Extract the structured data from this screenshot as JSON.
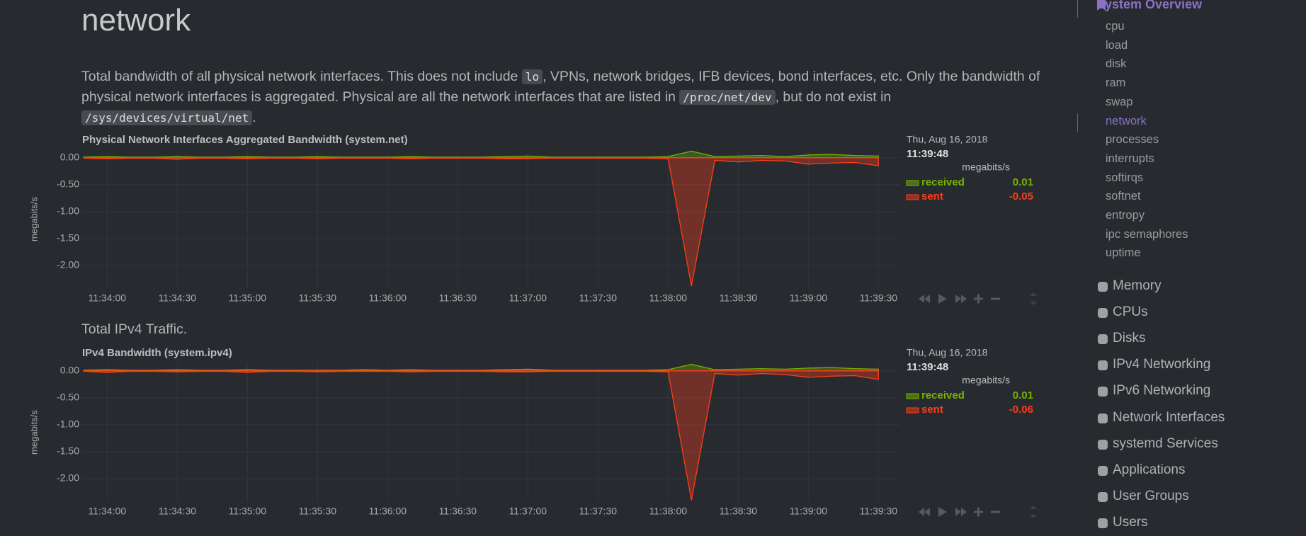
{
  "header": {
    "title": "network"
  },
  "description": [
    {
      "text": "Total bandwidth of all physical network interfaces. This does not include "
    },
    {
      "code": "lo"
    },
    {
      "text": ", VPNs, network bridges, IFB devices, bond interfaces, etc. Only the bandwidth of physical network interfaces is aggregated. Physical are all the network interfaces that are listed in "
    },
    {
      "code": "/proc/net/dev"
    },
    {
      "text": ", but do not exist in "
    },
    {
      "code": "/sys/devices/virtual/net"
    },
    {
      "text": "."
    }
  ],
  "ipv4_intro": "Total IPv4 Traffic.",
  "chart_data": [
    {
      "type": "area",
      "title": "Physical Network Interfaces Aggregated Bandwidth (system.net)",
      "y_label": "megabits/s",
      "date": "Thu, Aug 16, 2018",
      "time": "11:39:48",
      "unit": "megabits/s",
      "x": [
        "11:33:50",
        "11:34:00",
        "11:34:10",
        "11:34:20",
        "11:34:30",
        "11:34:40",
        "11:34:50",
        "11:35:00",
        "11:35:10",
        "11:35:20",
        "11:35:30",
        "11:35:40",
        "11:35:50",
        "11:36:00",
        "11:36:10",
        "11:36:20",
        "11:36:30",
        "11:36:40",
        "11:36:50",
        "11:37:00",
        "11:37:10",
        "11:37:20",
        "11:37:30",
        "11:37:40",
        "11:37:50",
        "11:38:00",
        "11:38:10",
        "11:38:20",
        "11:38:30",
        "11:38:40",
        "11:38:50",
        "11:39:00",
        "11:39:10",
        "11:39:20",
        "11:39:30"
      ],
      "series": [
        {
          "name": "received",
          "color": "#77b300",
          "last_value": 0.01,
          "values": [
            0.01,
            0.02,
            0.01,
            0.01,
            0.02,
            0.01,
            0.01,
            0.02,
            0.01,
            0.01,
            0.02,
            0.01,
            0.01,
            0.01,
            0.02,
            0.01,
            0.01,
            0.01,
            0.02,
            0.03,
            0.01,
            0.01,
            0.01,
            0.01,
            0.01,
            0.02,
            0.12,
            0.02,
            0.03,
            0.04,
            0.02,
            0.05,
            0.06,
            0.04,
            0.03
          ]
        },
        {
          "name": "sent",
          "color": "#ff3c1a",
          "last_value": -0.05,
          "values": [
            -0.01,
            -0.02,
            -0.01,
            -0.01,
            -0.03,
            -0.01,
            -0.01,
            -0.02,
            -0.01,
            -0.01,
            -0.02,
            -0.01,
            -0.01,
            -0.01,
            -0.02,
            -0.01,
            -0.01,
            -0.01,
            -0.02,
            -0.02,
            -0.01,
            -0.01,
            -0.01,
            -0.01,
            -0.01,
            -0.02,
            -2.38,
            -0.05,
            -0.08,
            -0.05,
            -0.06,
            -0.12,
            -0.1,
            -0.09,
            -0.15
          ]
        }
      ],
      "xlim": [
        "11:33:49",
        "11:39:39"
      ],
      "xticks": [
        "11:34:00",
        "11:34:30",
        "11:35:00",
        "11:35:30",
        "11:36:00",
        "11:36:30",
        "11:37:00",
        "11:37:30",
        "11:38:00",
        "11:38:30",
        "11:39:00",
        "11:39:30"
      ],
      "ylim": [
        -2.42,
        0.14
      ],
      "yticks": [
        {
          "value": 0,
          "label": "0.00"
        },
        {
          "value": -0.5,
          "label": "-0.50"
        },
        {
          "value": -1,
          "label": "-1.00"
        },
        {
          "value": -1.5,
          "label": "-1.50"
        },
        {
          "value": -2,
          "label": "-2.00"
        }
      ],
      "grid": true
    },
    {
      "type": "area",
      "title": "IPv4 Bandwidth (system.ipv4)",
      "y_label": "megabits/s",
      "date": "Thu, Aug 16, 2018",
      "time": "11:39:48",
      "unit": "megabits/s",
      "x": [
        "11:33:50",
        "11:34:00",
        "11:34:10",
        "11:34:20",
        "11:34:30",
        "11:34:40",
        "11:34:50",
        "11:35:00",
        "11:35:10",
        "11:35:20",
        "11:35:30",
        "11:35:40",
        "11:35:50",
        "11:36:00",
        "11:36:10",
        "11:36:20",
        "11:36:30",
        "11:36:40",
        "11:36:50",
        "11:37:00",
        "11:37:10",
        "11:37:20",
        "11:37:30",
        "11:37:40",
        "11:37:50",
        "11:38:00",
        "11:38:10",
        "11:38:20",
        "11:38:30",
        "11:38:40",
        "11:38:50",
        "11:39:00",
        "11:39:10",
        "11:39:20",
        "11:39:30"
      ],
      "series": [
        {
          "name": "received",
          "color": "#77b300",
          "last_value": 0.01,
          "values": [
            0.01,
            0.02,
            0.01,
            0.01,
            0.02,
            0.01,
            0.01,
            0.02,
            0.01,
            0.01,
            0.01,
            0.01,
            0.02,
            0.01,
            0.02,
            0.01,
            0.01,
            0.01,
            0.02,
            0.03,
            0.01,
            0.01,
            0.01,
            0.01,
            0.01,
            0.02,
            0.12,
            0.02,
            0.03,
            0.04,
            0.03,
            0.05,
            0.06,
            0.04,
            0.03
          ]
        },
        {
          "name": "sent",
          "color": "#ff3c1a",
          "last_value": -0.06,
          "values": [
            -0.01,
            -0.03,
            -0.01,
            -0.01,
            -0.02,
            -0.01,
            -0.01,
            -0.03,
            -0.01,
            -0.01,
            -0.02,
            -0.01,
            -0.01,
            -0.01,
            -0.02,
            -0.01,
            -0.01,
            -0.01,
            -0.02,
            -0.02,
            -0.01,
            -0.01,
            -0.01,
            -0.01,
            -0.01,
            -0.02,
            -2.4,
            -0.05,
            -0.08,
            -0.05,
            -0.07,
            -0.12,
            -0.1,
            -0.09,
            -0.16
          ]
        }
      ],
      "xlim": [
        "11:33:49",
        "11:39:39"
      ],
      "xticks": [
        "11:34:00",
        "11:34:30",
        "11:35:00",
        "11:35:30",
        "11:36:00",
        "11:36:30",
        "11:37:00",
        "11:37:30",
        "11:38:00",
        "11:38:30",
        "11:39:00",
        "11:39:30"
      ],
      "ylim": [
        -2.42,
        0.14
      ],
      "yticks": [
        {
          "value": 0,
          "label": "0.00"
        },
        {
          "value": -0.5,
          "label": "-0.50"
        },
        {
          "value": -1,
          "label": "-1.00"
        },
        {
          "value": -1.5,
          "label": "-1.50"
        },
        {
          "value": -2,
          "label": "-2.00"
        }
      ],
      "grid": true
    }
  ],
  "sidebar": {
    "group": "System Overview",
    "items": [
      "cpu",
      "load",
      "disk",
      "ram",
      "swap",
      "network",
      "processes",
      "interrupts",
      "softirqs",
      "softnet",
      "entropy",
      "ipc semaphores",
      "uptime"
    ],
    "active_index": 5,
    "sections": [
      "Memory",
      "CPUs",
      "Disks",
      "IPv4 Networking",
      "IPv6 Networking",
      "Network Interfaces",
      "systemd Services",
      "Applications",
      "User Groups",
      "Users"
    ]
  }
}
